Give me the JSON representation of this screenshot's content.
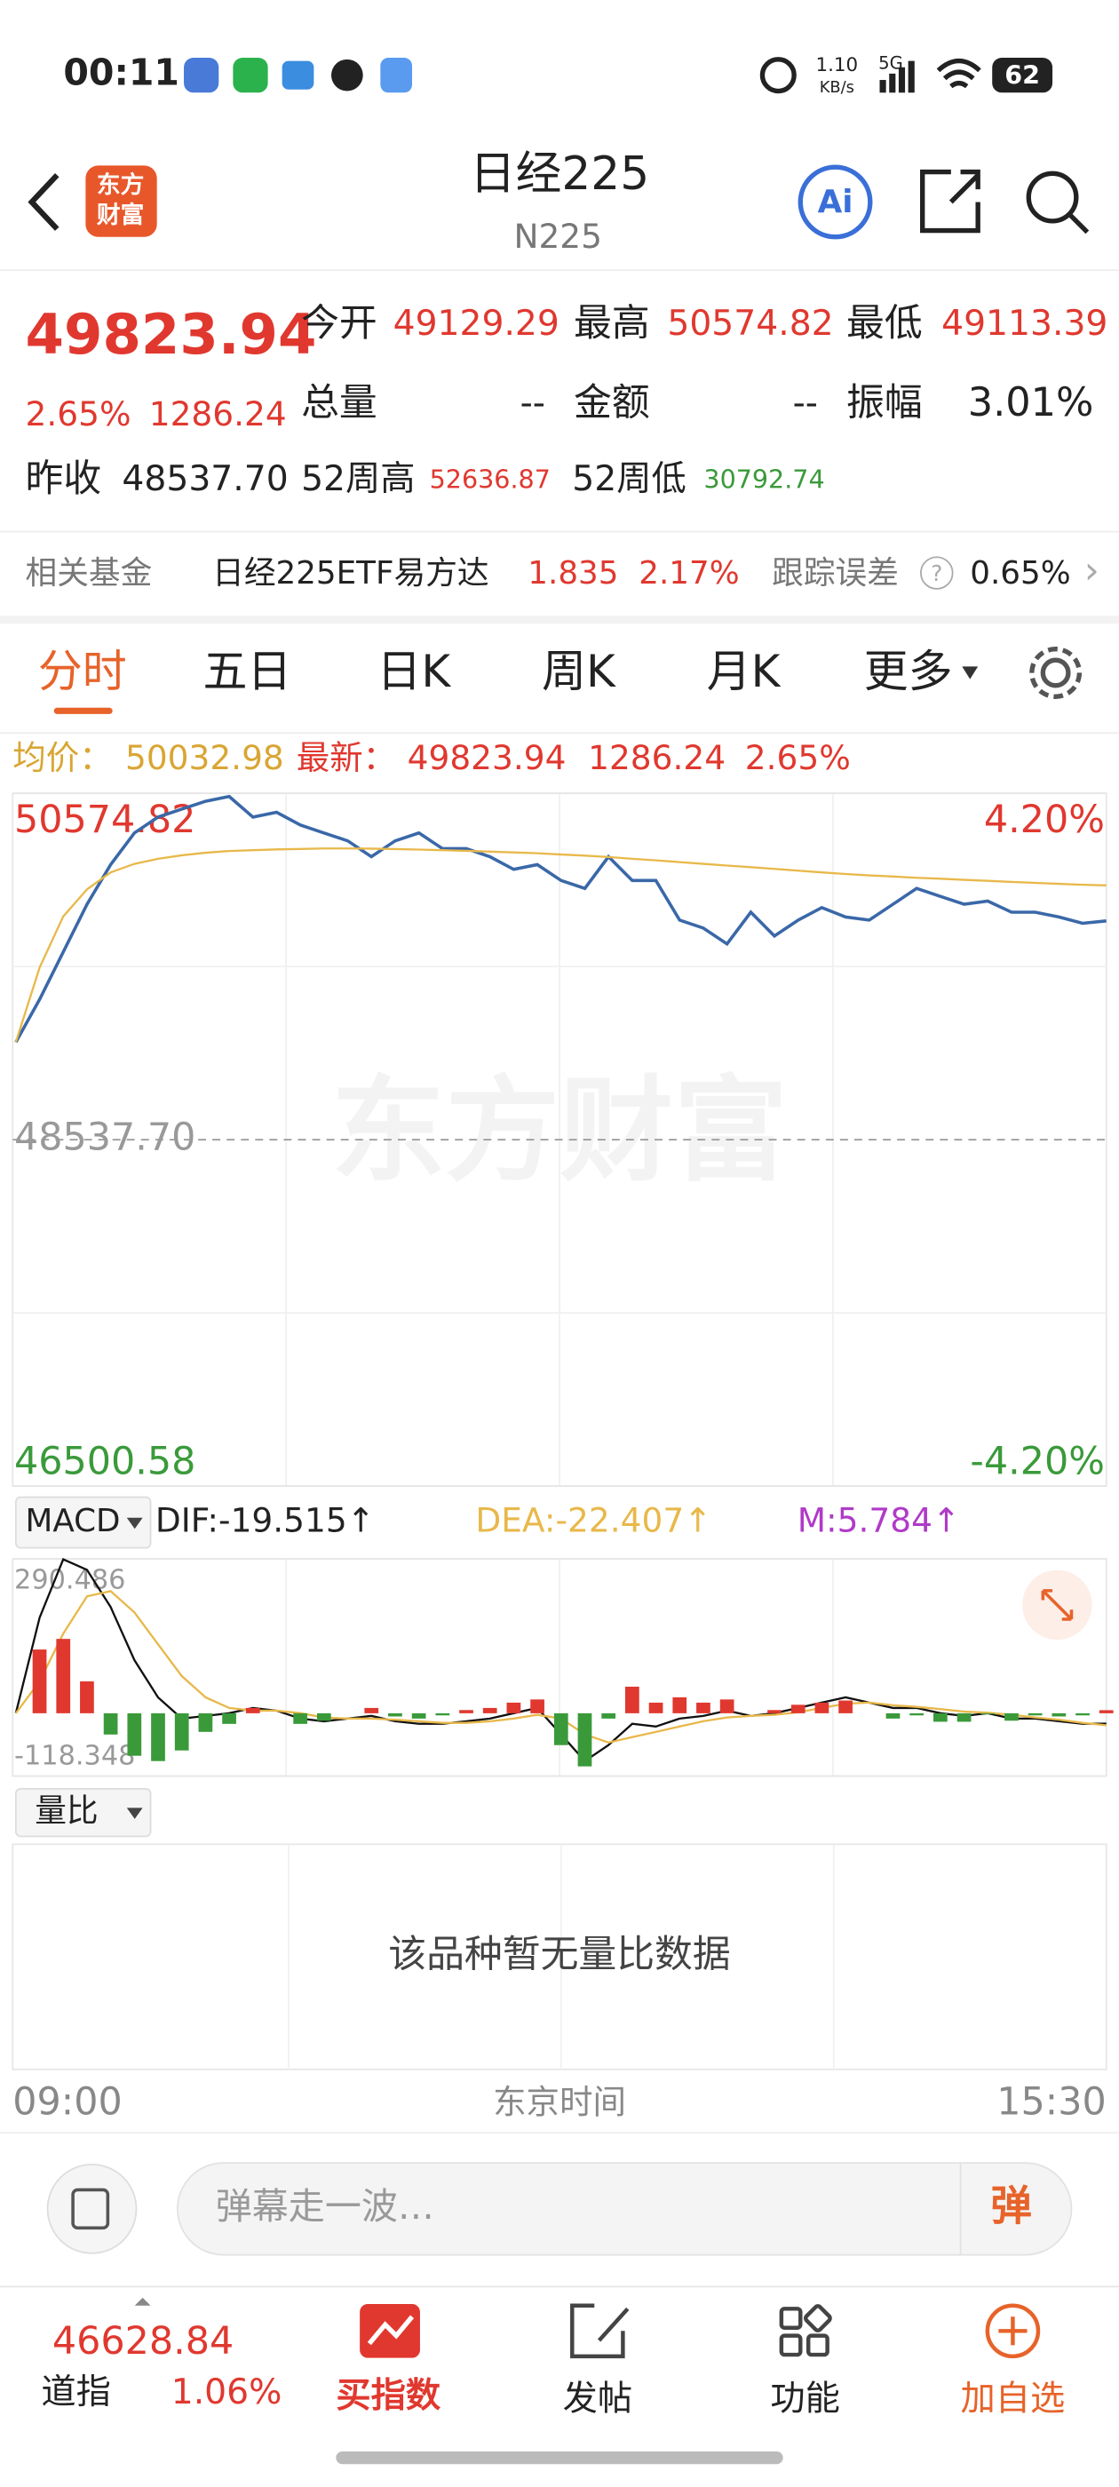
{
  "status_bar": {
    "time": "00:11",
    "net_speed": "1.10",
    "net_unit": "KB/s",
    "signal": "5G",
    "battery": "62"
  },
  "header": {
    "logo_top": "东方",
    "logo_bottom": "财富",
    "title": "日经225",
    "code": "N225",
    "ai": "Ai"
  },
  "quote": {
    "price": "49823.94",
    "change_pct": "2.65%",
    "change": "1286.24",
    "open_label": "今开",
    "open": "49129.29",
    "high_label": "最高",
    "high": "50574.82",
    "low_label": "最低",
    "low": "49113.39",
    "volume_label": "总量",
    "volume": "--",
    "amount_label": "金额",
    "amount": "--",
    "amplitude_label": "振幅",
    "amplitude": "3.01%",
    "prev_close_label": "昨收",
    "prev_close": "48537.70",
    "week52_high_label": "52周高",
    "week52_high": "52636.87",
    "week52_low_label": "52周低",
    "week52_low": "30792.74"
  },
  "fund": {
    "label": "相关基金",
    "name": "日经225ETF易方达",
    "price": "1.835",
    "change_pct": "2.17%",
    "error_label": "跟踪误差",
    "help": "?",
    "error": "0.65%",
    "more": "›"
  },
  "tabs": [
    "分时",
    "五日",
    "日K",
    "周K",
    "月K",
    "更多"
  ],
  "info_bar": {
    "avg": "50032.98",
    "latest": "49823.94",
    "change": "1286.24",
    "change_pct": "2.65%"
  },
  "watermark": "东方财富",
  "chart_data": [
    {
      "type": "line",
      "ylim": [
        46500.58,
        50574.82
      ],
      "yticks": [
        50574.82,
        {
          "value": 48537.7,
          "label": "48537.70"
        },
        46500.58
      ],
      "ytick_colors": [
        "#e0382f",
        "#999999",
        "#3a9a3a"
      ],
      "y2lim": [
        -4.2,
        4.2
      ],
      "y2ticks": [
        {
          "value": 4.2,
          "label": "4.20%"
        },
        {
          "value": -4.2,
          "label": "-4.20%"
        }
      ],
      "series": [
        {
          "name": "最新：",
          "color": "#3a68a8",
          "values": [
            49111,
            49363,
            49642,
            49922,
            50155,
            50342,
            50435,
            50482,
            50528,
            50556,
            50435,
            50463,
            50388,
            50342,
            50295,
            50202,
            50295,
            50342,
            50249,
            50249,
            50202,
            50127,
            50155,
            50062,
            50015,
            50202,
            50062,
            50062,
            49829,
            49782,
            49689,
            49876,
            49736,
            49829,
            49903,
            49848,
            49829,
            49922,
            50015,
            49969,
            49922,
            49941,
            49876,
            49876,
            49848,
            49810,
            49823.94
          ]
        },
        {
          "name": "均价：",
          "color": "#e8b84a",
          "values": [
            49111,
            49550,
            49850,
            50010,
            50110,
            50160,
            50190,
            50210,
            50225,
            50235,
            50240,
            50245,
            50248,
            50250,
            50250,
            50249,
            50247,
            50244,
            50240,
            50236,
            50232,
            50227,
            50222,
            50215,
            50208,
            50200,
            50190,
            50180,
            50170,
            50160,
            50150,
            50140,
            50130,
            50120,
            50110,
            50100,
            50092,
            50085,
            50078,
            50072,
            50066,
            50060,
            50054,
            50048,
            50042,
            50037,
            50032.98
          ]
        }
      ],
      "xlabels": [
        "09:00",
        "东京时间",
        "15:30"
      ]
    },
    {
      "type": "macd",
      "selector": "MACD",
      "ylim": [
        -118.348,
        290.486
      ],
      "yticks": [
        290.486,
        -118.348
      ],
      "series": [
        {
          "name": "DIF:-19.515↑",
          "color": "#111111",
          "values": [
            0,
            180,
            290,
            270,
            200,
            100,
            30,
            -10,
            -5,
            0,
            10,
            5,
            -10,
            -15,
            -10,
            -5,
            -15,
            -20,
            -20,
            -15,
            -10,
            0,
            10,
            -40,
            -90,
            -60,
            -20,
            -25,
            -10,
            -5,
            5,
            -5,
            0,
            10,
            20,
            30,
            20,
            10,
            10,
            0,
            -5,
            0,
            -10,
            -10,
            -15,
            -20,
            -19.515
          ]
        },
        {
          "name": "DEA:-22.407↑",
          "color": "#e8b84a",
          "values": [
            0,
            60,
            150,
            220,
            230,
            190,
            130,
            70,
            30,
            10,
            5,
            5,
            0,
            -8,
            -10,
            -10,
            -12,
            -15,
            -18,
            -18,
            -15,
            -10,
            -3,
            -10,
            -40,
            -55,
            -45,
            -35,
            -25,
            -15,
            -8,
            -5,
            -3,
            2,
            10,
            18,
            20,
            15,
            12,
            8,
            3,
            1,
            -3,
            -8,
            -12,
            -18,
            -22.407
          ]
        },
        {
          "name": "M:5.784↑",
          "type": "bar",
          "color": "#e0382f",
          "down_color": "#3a9a3a",
          "legend_color": "#b03ac8",
          "values": [
            0,
            120,
            140,
            60,
            -40,
            -80,
            -90,
            -70,
            -35,
            -20,
            10,
            0,
            -20,
            -14,
            0,
            10,
            -6,
            -10,
            -4,
            6,
            10,
            20,
            26,
            -60,
            -100,
            -10,
            50,
            20,
            30,
            20,
            26,
            0,
            6,
            16,
            20,
            24,
            0,
            -10,
            -4,
            -16,
            -16,
            -2,
            -14,
            -4,
            -6,
            -4,
            5.784
          ]
        }
      ]
    }
  ],
  "ratio_panel": {
    "selector": "量比",
    "empty": "该品种暂无量比数据"
  },
  "input": {
    "placeholder": "弹幕走一波…",
    "button": "弹"
  },
  "nav": {
    "index_value": "46628.84",
    "index_name": "道指",
    "index_change": "1.06%",
    "items": [
      "买指数",
      "发帖",
      "功能",
      "加自选"
    ]
  }
}
